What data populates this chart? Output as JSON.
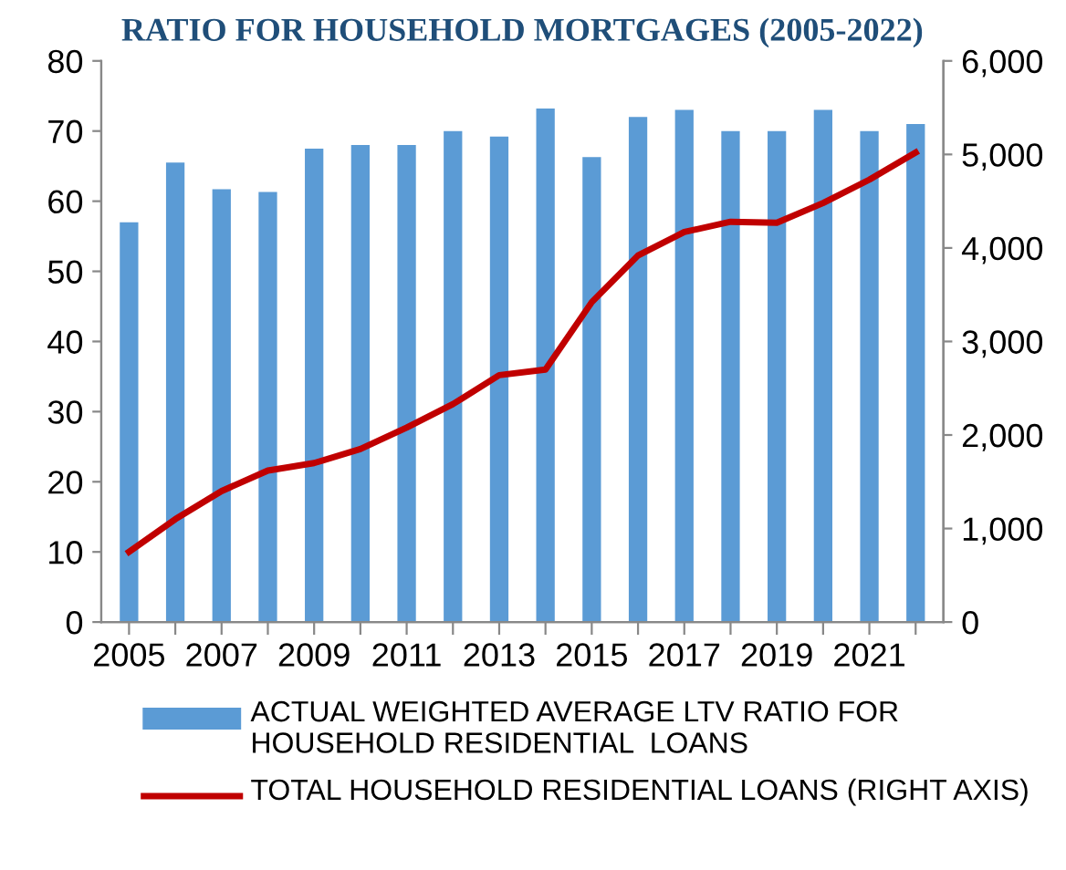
{
  "chart_data": {
    "type": "bar",
    "title": "RATIO FOR HOUSEHOLD MORTGAGES (2005-2022)",
    "categories": [
      "2005",
      null,
      "2007",
      null,
      "2009",
      null,
      "2011",
      null,
      "2013",
      null,
      "2015",
      null,
      "2017",
      null,
      "2019",
      null,
      "2021",
      null
    ],
    "series": [
      {
        "name": "ACTUAL WEIGHTED AVERAGE LTV RATIO FOR HOUSEHOLD RESIDENTIAL  LOANS",
        "color": "#5b9bd5",
        "values": [
          57,
          65.5,
          61.7,
          61.3,
          67.5,
          68,
          68,
          70,
          69.2,
          73.2,
          66.3,
          72,
          73,
          70,
          70,
          73,
          70,
          71
        ]
      },
      {
        "name": "TOTAL HOUSEHOLD RESIDENTIAL LOANS (RIGHT AXIS)",
        "type": "line",
        "axis": "y2",
        "color": "#c00000",
        "values": [
          750,
          1100,
          1400,
          1620,
          1700,
          1850,
          2080,
          2330,
          2640,
          2700,
          3420,
          3920,
          4170,
          4280,
          4270,
          4480,
          4730,
          5020
        ]
      }
    ],
    "ylim": [
      0,
      80
    ],
    "yticks": [
      0,
      10,
      20,
      30,
      40,
      50,
      60,
      70,
      80
    ],
    "y2lim": [
      0,
      6000
    ],
    "y2ticks": [
      {
        "value": 0,
        "label": "0"
      },
      {
        "value": 1000,
        "label": "1,000"
      },
      {
        "value": 2000,
        "label": "2,000"
      },
      {
        "value": 3000,
        "label": "3,000"
      },
      {
        "value": 4000,
        "label": "4,000"
      },
      {
        "value": 5000,
        "label": "5,000"
      },
      {
        "value": 6000,
        "label": "6,000"
      }
    ],
    "grid": false,
    "legend": "bottom"
  }
}
